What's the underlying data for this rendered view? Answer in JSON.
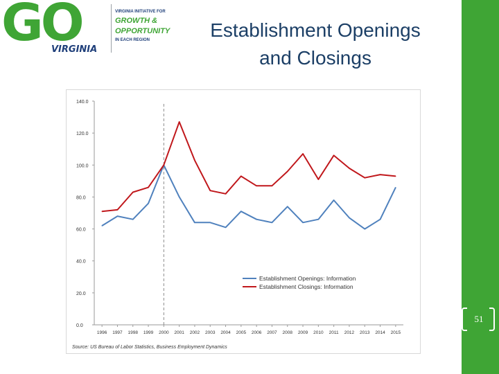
{
  "slide": {
    "title_line1": "Establishment Openings",
    "title_line2": "and Closings",
    "slide_number": "51"
  },
  "logo": {
    "go": "GO",
    "virginia": "VIRGINIA",
    "tag_top": "VIRGINIA INITIATIVE FOR",
    "tag_growth": "GROWTH &",
    "tag_opportunity": "OPPORTUNITY",
    "tag_bottom": "IN EACH REGION"
  },
  "colors": {
    "openings": "#4f81bd",
    "closings": "#c0171b",
    "brand_green": "#3fa535",
    "title": "#1c3f66"
  },
  "chart_data": {
    "type": "line",
    "title": "",
    "xlabel": "",
    "ylabel": "",
    "x": [
      "1996",
      "1997",
      "1998",
      "1999",
      "2000",
      "2001",
      "2002",
      "2003",
      "2004",
      "2005",
      "2006",
      "2007",
      "2008",
      "2009",
      "2010",
      "2011",
      "2012",
      "2013",
      "2014",
      "2015"
    ],
    "ylim": [
      0,
      140
    ],
    "yticks": [
      "0.0",
      "20.0",
      "40.0",
      "60.0",
      "80.0",
      "100.0",
      "120.0",
      "140.0"
    ],
    "reference_line_x": "2000",
    "grid": false,
    "legend_position": "lower-right",
    "source": "Source: US Bureau of Labor Statistics, Business Employment Dynamics",
    "series": [
      {
        "name": "Establishment Openings: Information",
        "color": "#4f81bd",
        "values": [
          62,
          68,
          66,
          76,
          100,
          80,
          64,
          64,
          61,
          71,
          66,
          64,
          74,
          64,
          66,
          78,
          67,
          60,
          66,
          86
        ]
      },
      {
        "name": "Establishment Closings: Information",
        "color": "#c0171b",
        "values": [
          71,
          72,
          83,
          86,
          100,
          127,
          103,
          84,
          82,
          93,
          87,
          87,
          96,
          107,
          91,
          106,
          98,
          92,
          94,
          93
        ]
      }
    ]
  }
}
